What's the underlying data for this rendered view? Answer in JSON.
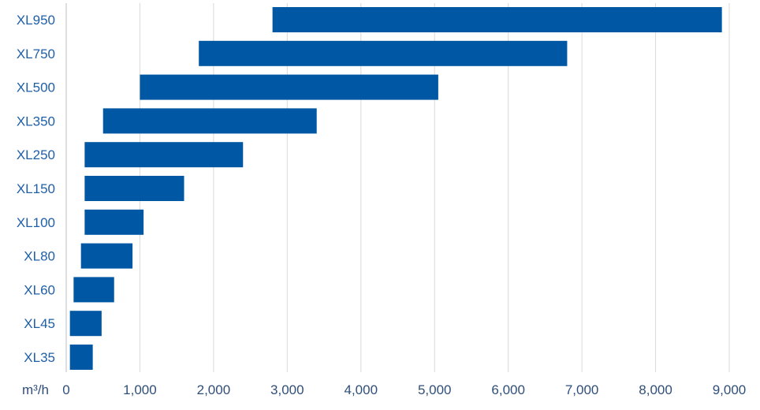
{
  "chart_data": {
    "type": "bar",
    "orientation": "horizontal",
    "floating": true,
    "categories": [
      "XL950",
      "XL750",
      "XL500",
      "XL350",
      "XL250",
      "XL150",
      "XL100",
      "XL80",
      "XL60",
      "XL45",
      "XL35"
    ],
    "ranges": [
      [
        2800,
        8900
      ],
      [
        1800,
        6800
      ],
      [
        1000,
        5050
      ],
      [
        500,
        3400
      ],
      [
        250,
        2400
      ],
      [
        250,
        1600
      ],
      [
        250,
        1050
      ],
      [
        200,
        900
      ],
      [
        100,
        650
      ],
      [
        50,
        480
      ],
      [
        50,
        360
      ]
    ],
    "xlabel": "m³/h",
    "ylabel": "",
    "xlim": [
      0,
      9000
    ],
    "xticks": [
      "0",
      "1,000",
      "2,000",
      "3,000",
      "4,000",
      "5,000",
      "6,000",
      "7,000",
      "8,000",
      "9,000"
    ],
    "grid": "vertical",
    "bar_color": "#0057a4",
    "label_color": "#1f5fa8"
  }
}
